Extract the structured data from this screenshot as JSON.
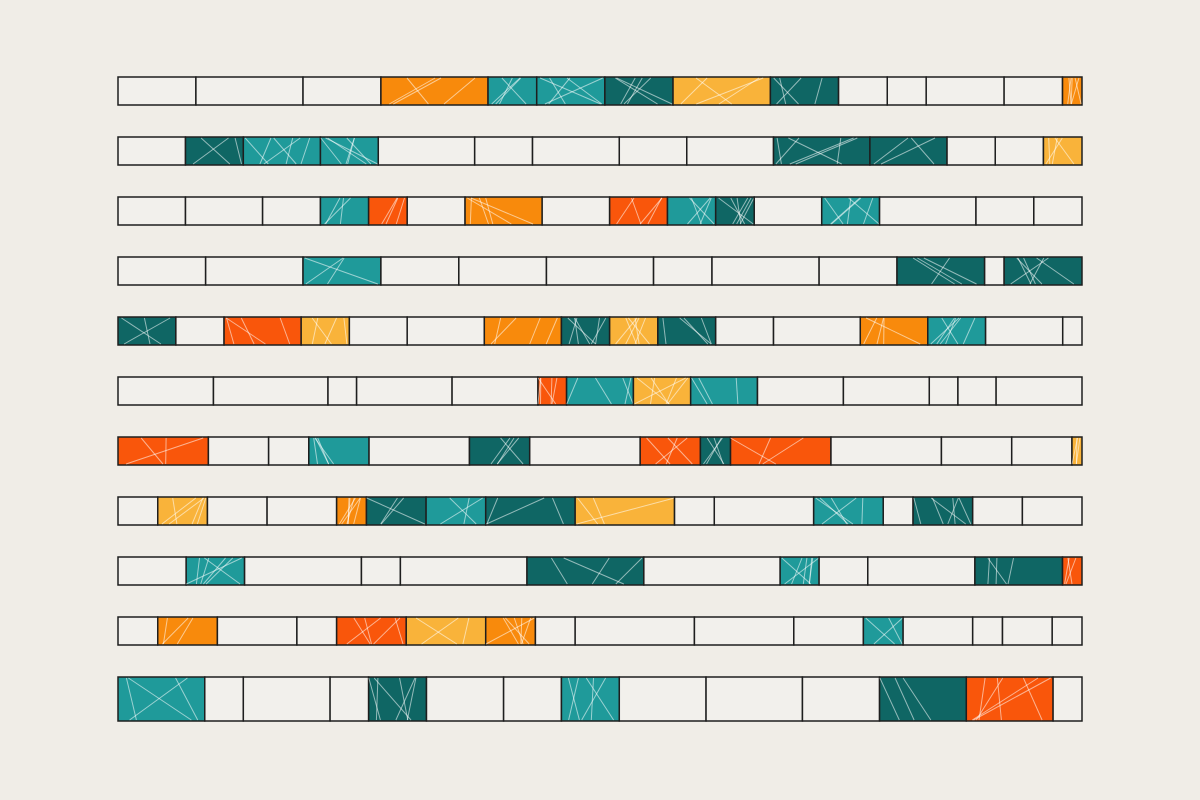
{
  "artwork": {
    "background": "#f0ede7",
    "outline_color": "#1e1e1e",
    "palette": {
      "empty": "#f2f0ec",
      "teal": "#1f9a9a",
      "dark_teal": "#0f6664",
      "orange": "#f88a0c",
      "light_orange": "#f9b33a",
      "red_orange": "#f9560b"
    },
    "rows": [
      [
        [
          "empty",
          8
        ],
        [
          "empty",
          11
        ],
        [
          "empty",
          8
        ],
        [
          "orange",
          11
        ],
        [
          "teal",
          5
        ],
        [
          "teal",
          7
        ],
        [
          "dark_teal",
          7
        ],
        [
          "light_orange",
          10
        ],
        [
          "dark_teal",
          7
        ],
        [
          "empty",
          5
        ],
        [
          "empty",
          4
        ],
        [
          "empty",
          8
        ],
        [
          "empty",
          6
        ],
        [
          "orange",
          2
        ]
      ],
      [
        [
          "empty",
          7
        ],
        [
          "dark_teal",
          6
        ],
        [
          "teal",
          8
        ],
        [
          "teal",
          6
        ],
        [
          "empty",
          10
        ],
        [
          "empty",
          6
        ],
        [
          "empty",
          9
        ],
        [
          "empty",
          7
        ],
        [
          "empty",
          9
        ],
        [
          "dark_teal",
          10
        ],
        [
          "dark_teal",
          8
        ],
        [
          "empty",
          5
        ],
        [
          "empty",
          5
        ],
        [
          "light_orange",
          4
        ]
      ],
      [
        [
          "empty",
          7
        ],
        [
          "empty",
          8
        ],
        [
          "empty",
          6
        ],
        [
          "teal",
          5
        ],
        [
          "red_orange",
          4
        ],
        [
          "empty",
          6
        ],
        [
          "orange",
          8
        ],
        [
          "empty",
          7
        ],
        [
          "red_orange",
          6
        ],
        [
          "teal",
          5
        ],
        [
          "dark_teal",
          4
        ],
        [
          "empty",
          7
        ],
        [
          "teal",
          6
        ],
        [
          "empty",
          10
        ],
        [
          "empty",
          6
        ],
        [
          "empty",
          5
        ]
      ],
      [
        [
          "empty",
          9
        ],
        [
          "empty",
          10
        ],
        [
          "teal",
          8
        ],
        [
          "empty",
          8
        ],
        [
          "empty",
          9
        ],
        [
          "empty",
          11
        ],
        [
          "empty",
          6
        ],
        [
          "empty",
          11
        ],
        [
          "empty",
          8
        ],
        [
          "dark_teal",
          9
        ],
        [
          "empty",
          2
        ],
        [
          "dark_teal",
          8
        ]
      ],
      [
        [
          "dark_teal",
          6
        ],
        [
          "empty",
          5
        ],
        [
          "red_orange",
          8
        ],
        [
          "light_orange",
          5
        ],
        [
          "empty",
          6
        ],
        [
          "empty",
          8
        ],
        [
          "orange",
          8
        ],
        [
          "dark_teal",
          5
        ],
        [
          "light_orange",
          5
        ],
        [
          "dark_teal",
          6
        ],
        [
          "empty",
          6
        ],
        [
          "empty",
          9
        ],
        [
          "orange",
          7
        ],
        [
          "teal",
          6
        ],
        [
          "empty",
          8
        ],
        [
          "empty",
          2
        ]
      ],
      [
        [
          "empty",
          10
        ],
        [
          "empty",
          12
        ],
        [
          "empty",
          3
        ],
        [
          "empty",
          10
        ],
        [
          "empty",
          9
        ],
        [
          "red_orange",
          3
        ],
        [
          "teal",
          7
        ],
        [
          "light_orange",
          6
        ],
        [
          "teal",
          7
        ],
        [
          "empty",
          9
        ],
        [
          "empty",
          9
        ],
        [
          "empty",
          3
        ],
        [
          "empty",
          4
        ],
        [
          "empty",
          9
        ]
      ],
      [
        [
          "red_orange",
          9
        ],
        [
          "empty",
          6
        ],
        [
          "empty",
          4
        ],
        [
          "teal",
          6
        ],
        [
          "empty",
          10
        ],
        [
          "dark_teal",
          6
        ],
        [
          "empty",
          11
        ],
        [
          "red_orange",
          6
        ],
        [
          "dark_teal",
          3
        ],
        [
          "red_orange",
          10
        ],
        [
          "empty",
          11
        ],
        [
          "empty",
          7
        ],
        [
          "empty",
          6
        ],
        [
          "light_orange",
          1
        ]
      ],
      [
        [
          "empty",
          4
        ],
        [
          "light_orange",
          5
        ],
        [
          "empty",
          6
        ],
        [
          "empty",
          7
        ],
        [
          "orange",
          3
        ],
        [
          "dark_teal",
          6
        ],
        [
          "teal",
          6
        ],
        [
          "dark_teal",
          9
        ],
        [
          "light_orange",
          10
        ],
        [
          "empty",
          4
        ],
        [
          "empty",
          10
        ],
        [
          "teal",
          7
        ],
        [
          "empty",
          3
        ],
        [
          "dark_teal",
          6
        ],
        [
          "empty",
          5
        ],
        [
          "empty",
          6
        ]
      ],
      [
        [
          "empty",
          7
        ],
        [
          "teal",
          6
        ],
        [
          "empty",
          12
        ],
        [
          "empty",
          4
        ],
        [
          "empty",
          13
        ],
        [
          "dark_teal",
          12
        ],
        [
          "empty",
          14
        ],
        [
          "teal",
          4
        ],
        [
          "empty",
          5
        ],
        [
          "empty",
          11
        ],
        [
          "dark_teal",
          9
        ],
        [
          "red_orange",
          2
        ]
      ],
      [
        [
          "empty",
          4
        ],
        [
          "orange",
          6
        ],
        [
          "empty",
          8
        ],
        [
          "empty",
          4
        ],
        [
          "red_orange",
          7
        ],
        [
          "light_orange",
          8
        ],
        [
          "orange",
          5
        ],
        [
          "empty",
          4
        ],
        [
          "empty",
          12
        ],
        [
          "empty",
          10
        ],
        [
          "empty",
          7
        ],
        [
          "teal",
          4
        ],
        [
          "empty",
          7
        ],
        [
          "empty",
          3
        ],
        [
          "empty",
          5
        ],
        [
          "empty",
          3
        ]
      ],
      [
        [
          "teal",
          9
        ],
        [
          "empty",
          4
        ],
        [
          "empty",
          9
        ],
        [
          "empty",
          4
        ],
        [
          "dark_teal",
          6
        ],
        [
          "empty",
          8
        ],
        [
          "empty",
          6
        ],
        [
          "teal",
          6
        ],
        [
          "empty",
          9
        ],
        [
          "empty",
          10
        ],
        [
          "empty",
          8
        ],
        [
          "dark_teal",
          9
        ],
        [
          "red_orange",
          9
        ],
        [
          "empty",
          3
        ]
      ]
    ]
  }
}
